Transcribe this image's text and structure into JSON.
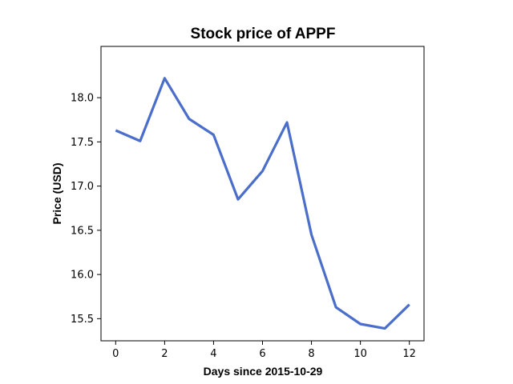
{
  "chart_data": {
    "type": "line",
    "title": "Stock price of APPF",
    "xlabel": "Days since 2015-10-29",
    "ylabel": "Price (USD)",
    "x": [
      0,
      1,
      2,
      3,
      4,
      5,
      6,
      7,
      8,
      9,
      10,
      11,
      12
    ],
    "series": [
      {
        "values": [
          17.63,
          17.51,
          18.22,
          17.76,
          17.58,
          16.85,
          17.17,
          17.72,
          16.45,
          15.63,
          15.44,
          15.39,
          15.66
        ],
        "color": "#4a6ec9"
      }
    ],
    "xlim": [
      -0.6,
      12.6
    ],
    "ylim": [
      15.25,
      18.58
    ],
    "xticks": [
      0,
      2,
      4,
      6,
      8,
      10,
      12
    ],
    "yticks": [
      15.5,
      16.0,
      16.5,
      17.0,
      17.5,
      18.0
    ],
    "xtick_labels": [
      "0",
      "2",
      "4",
      "6",
      "8",
      "10",
      "12"
    ],
    "ytick_labels": [
      "15.5",
      "16.0",
      "16.5",
      "17.0",
      "17.5",
      "18.0"
    ],
    "grid": false,
    "legend": "none"
  }
}
